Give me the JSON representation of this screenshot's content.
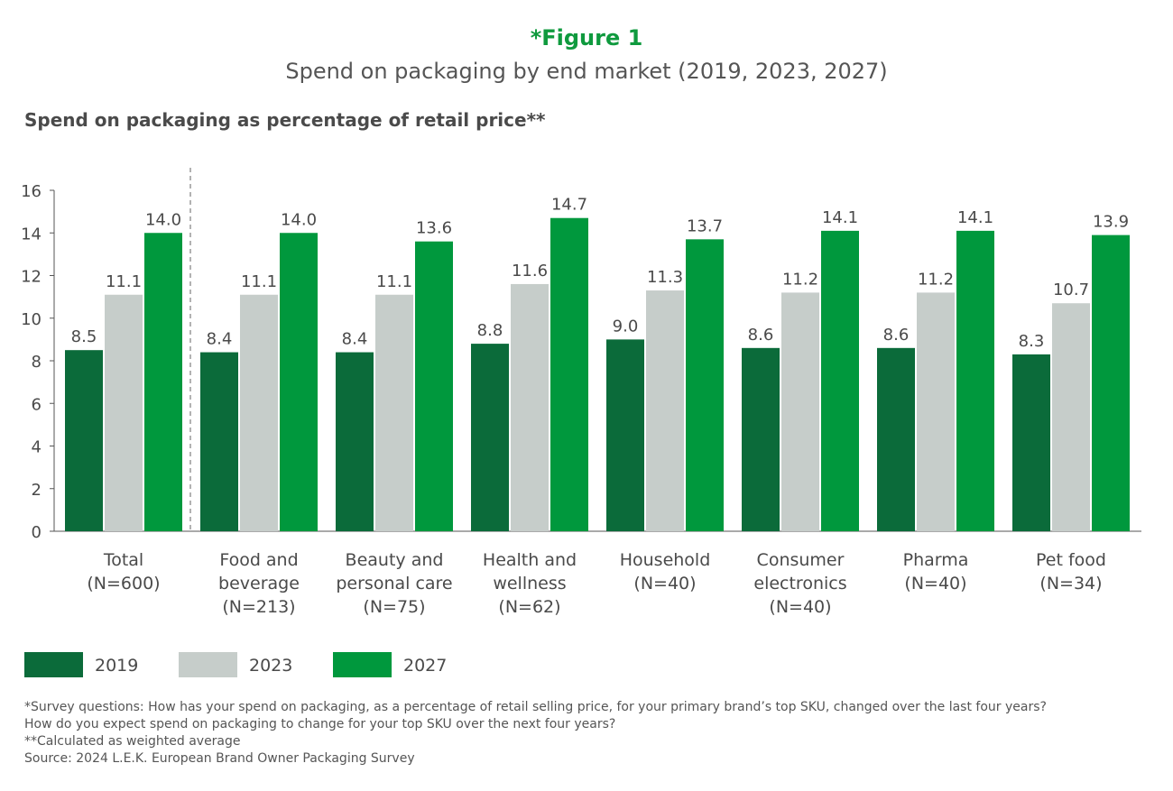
{
  "header": {
    "figure_label": "*Figure 1",
    "subtitle": "Spend on packaging by end market (2019, 2023, 2027)"
  },
  "chart_data": {
    "type": "bar",
    "title": "Spend on packaging as percentage of retail price**",
    "categories": [
      [
        "Total",
        "(N=600)"
      ],
      [
        "Food and",
        "beverage",
        "(N=213)"
      ],
      [
        "Beauty and",
        "personal care",
        "(N=75)"
      ],
      [
        "Health and",
        "wellness",
        "(N=62)"
      ],
      [
        "Household",
        "(N=40)"
      ],
      [
        "Consumer",
        "electronics",
        "(N=40)"
      ],
      [
        "Pharma",
        "(N=40)"
      ],
      [
        "Pet food",
        "(N=34)"
      ]
    ],
    "series": [
      {
        "name": "2019",
        "color": "#0b6b3a",
        "values": [
          8.5,
          8.4,
          8.4,
          8.8,
          9.0,
          8.6,
          8.6,
          8.3
        ]
      },
      {
        "name": "2023",
        "color": "#c6cdca",
        "values": [
          11.1,
          11.1,
          11.1,
          11.6,
          11.3,
          11.2,
          11.2,
          10.7
        ]
      },
      {
        "name": "2027",
        "color": "#00983d",
        "values": [
          14.0,
          14.0,
          13.6,
          14.7,
          13.7,
          14.1,
          14.1,
          13.9
        ]
      }
    ],
    "ylim": [
      0,
      16
    ],
    "yticks": [
      0,
      2,
      4,
      6,
      8,
      10,
      12,
      14,
      16
    ],
    "grid": false,
    "data_labels": true,
    "legend_position": "bottom-left",
    "separator_after_first_category": true
  },
  "footnotes": [
    "*Survey questions: How has your spend on packaging, as a percentage of retail selling price, for your primary brand’s top SKU, changed over the last four years?",
    "How do you expect spend on packaging to change for your top SKU over the next four years?",
    "**Calculated as weighted average",
    "Source: 2024 L.E.K. European Brand Owner Packaging Survey"
  ],
  "colors": {
    "title": "#0f9a3e",
    "text": "#4a4a4a"
  }
}
